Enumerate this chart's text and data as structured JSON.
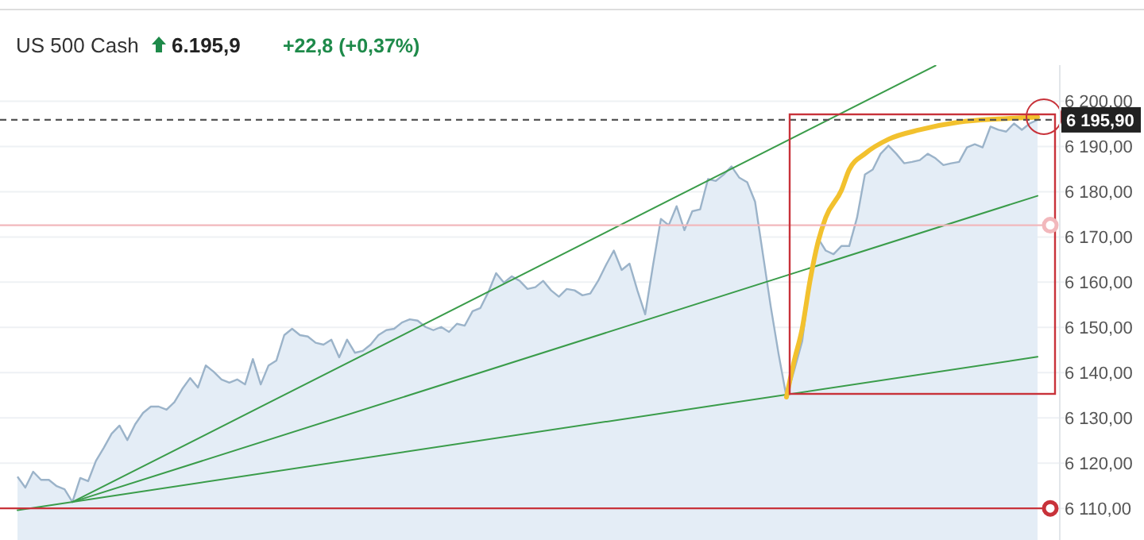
{
  "chart_data": {
    "type": "area",
    "title": "US 500 Cash",
    "subtitle": "6.195,9",
    "annotations": [
      "+22,8 (+0,37%)"
    ],
    "categories": [
      null,
      null,
      null,
      null,
      null,
      null,
      null,
      null,
      null,
      null,
      null,
      null,
      null,
      null,
      null,
      null,
      null,
      null,
      null,
      null,
      null,
      null,
      null,
      null,
      null,
      null,
      null,
      null,
      null,
      null,
      null,
      null,
      null,
      null,
      null,
      null,
      null,
      null,
      null,
      null,
      null,
      null,
      null,
      null,
      null,
      null,
      null,
      null,
      null,
      null,
      null,
      null,
      null,
      null,
      null,
      null,
      null,
      null,
      null,
      null,
      null,
      null,
      null,
      null,
      null,
      null,
      null,
      null,
      null,
      null,
      null,
      null,
      null,
      null,
      null,
      null,
      null,
      null,
      null,
      null,
      null,
      null,
      null,
      null,
      null,
      null,
      null,
      null,
      null,
      null,
      null,
      null,
      null,
      null,
      null,
      null,
      null,
      null,
      null,
      null,
      null,
      null,
      null,
      null,
      null,
      null,
      null,
      null,
      null,
      null,
      null,
      null,
      null,
      null,
      null,
      null,
      null,
      null,
      null,
      null,
      null,
      null,
      null,
      null,
      null,
      null,
      null,
      null,
      null,
      null,
      null
    ],
    "ylim": [
      6103,
      6208
    ],
    "yticks": [
      {
        "value": 6110,
        "label": "6 110,00"
      },
      {
        "value": 6120,
        "label": "6 120,00"
      },
      {
        "value": 6130,
        "label": "6 130,00"
      },
      {
        "value": 6140,
        "label": "6 140,00"
      },
      {
        "value": 6150,
        "label": "6 150,00"
      },
      {
        "value": 6160,
        "label": "6 160,00"
      },
      {
        "value": 6170,
        "label": "6 170,00"
      },
      {
        "value": 6180,
        "label": "6 180,00"
      },
      {
        "value": 6190,
        "label": "6 190,00"
      },
      {
        "value": 6200,
        "label": "6 200,00"
      }
    ],
    "tick_labels": "y",
    "grid": "y",
    "series": [
      {
        "type": "line",
        "color": "#3a9c4a",
        "values": [
          null,
          null,
          null,
          null,
          null,
          null,
          null,
          6111.4,
          null,
          null,
          null,
          null,
          null,
          null,
          null,
          null,
          null,
          null,
          null,
          null,
          null,
          null,
          null,
          null,
          null,
          null,
          null,
          null,
          null,
          null,
          null,
          null,
          null,
          null,
          null,
          null,
          null,
          null,
          null,
          null,
          null,
          null,
          null,
          null,
          null,
          null,
          null,
          null,
          null,
          null,
          null,
          null,
          null,
          null,
          null,
          null,
          null,
          null,
          null,
          null,
          null,
          null,
          null,
          null,
          null,
          null,
          null,
          null,
          null,
          null,
          null,
          null,
          null,
          null,
          null,
          null,
          null,
          null,
          null,
          null,
          null,
          null,
          null,
          null,
          null,
          null,
          null,
          null,
          null,
          null,
          null,
          null,
          null,
          null,
          null,
          null,
          null,
          null,
          null,
          null,
          null,
          null,
          null,
          null,
          null,
          null,
          null,
          null,
          null,
          null,
          null,
          null,
          null,
          null,
          null,
          null,
          null,
          6207.9,
          null,
          null,
          null,
          null,
          null,
          null,
          null,
          null,
          null,
          null,
          null,
          null,
          null
        ]
      },
      {
        "type": "line",
        "color": "#3a9c4a",
        "values": [
          null,
          null,
          null,
          null,
          null,
          null,
          null,
          6111.4,
          null,
          null,
          null,
          null,
          null,
          null,
          null,
          null,
          null,
          null,
          null,
          null,
          null,
          null,
          null,
          null,
          null,
          null,
          null,
          null,
          null,
          null,
          null,
          null,
          null,
          null,
          null,
          null,
          null,
          null,
          null,
          null,
          null,
          null,
          null,
          null,
          null,
          null,
          null,
          null,
          null,
          null,
          null,
          null,
          null,
          null,
          null,
          null,
          null,
          null,
          null,
          null,
          null,
          null,
          null,
          null,
          null,
          null,
          null,
          null,
          null,
          null,
          null,
          null,
          null,
          null,
          null,
          null,
          null,
          null,
          null,
          null,
          null,
          null,
          null,
          null,
          null,
          null,
          null,
          null,
          null,
          null,
          null,
          null,
          null,
          null,
          null,
          null,
          null,
          null,
          null,
          null,
          null,
          null,
          null,
          null,
          null,
          null,
          null,
          null,
          null,
          null,
          null,
          null,
          null,
          null,
          null,
          null,
          null,
          null,
          null,
          null,
          null,
          null,
          null,
          null,
          null,
          null,
          null,
          null,
          null,
          null,
          6179.1
        ]
      },
      {
        "type": "line",
        "color": "#3a9c4a",
        "values": [
          6109.6,
          null,
          null,
          null,
          null,
          null,
          null,
          null,
          null,
          null,
          null,
          null,
          null,
          null,
          null,
          null,
          null,
          null,
          null,
          null,
          null,
          null,
          null,
          null,
          null,
          null,
          null,
          null,
          null,
          null,
          null,
          null,
          null,
          null,
          null,
          null,
          null,
          null,
          null,
          null,
          null,
          null,
          null,
          null,
          null,
          null,
          null,
          null,
          null,
          null,
          null,
          null,
          null,
          null,
          null,
          null,
          null,
          null,
          null,
          null,
          null,
          null,
          null,
          null,
          null,
          null,
          null,
          null,
          null,
          null,
          null,
          null,
          null,
          null,
          null,
          null,
          null,
          null,
          null,
          null,
          null,
          null,
          null,
          null,
          null,
          null,
          null,
          null,
          null,
          null,
          null,
          null,
          null,
          null,
          null,
          null,
          null,
          null,
          null,
          null,
          null,
          null,
          null,
          null,
          null,
          null,
          null,
          null,
          null,
          null,
          null,
          null,
          null,
          null,
          null,
          null,
          null,
          null,
          null,
          null,
          null,
          null,
          null,
          null,
          null,
          null,
          null,
          null,
          null,
          null,
          6143.5
        ]
      },
      {
        "type": "line",
        "color": "#f2c12e",
        "values": [
          null,
          null,
          null,
          null,
          null,
          null,
          null,
          null,
          null,
          null,
          null,
          null,
          null,
          null,
          null,
          null,
          null,
          null,
          null,
          null,
          null,
          null,
          null,
          null,
          null,
          null,
          null,
          null,
          null,
          null,
          null,
          null,
          null,
          null,
          null,
          null,
          null,
          null,
          null,
          null,
          null,
          null,
          null,
          null,
          null,
          null,
          null,
          null,
          null,
          null,
          null,
          null,
          null,
          null,
          null,
          null,
          null,
          null,
          null,
          null,
          null,
          null,
          null,
          null,
          null,
          null,
          null,
          null,
          null,
          null,
          null,
          null,
          null,
          null,
          null,
          null,
          null,
          null,
          null,
          null,
          null,
          null,
          null,
          null,
          null,
          null,
          null,
          null,
          null,
          null,
          null,
          null,
          null,
          null,
          null,
          null,
          null,
          null,
          6134.6,
          6142.7,
          6149.7,
          6160.3,
          6168.7,
          6174.3,
          null,
          6180.3,
          6184.9,
          null,
          6188.4,
          null,
          null,
          6191.6,
          null,
          null,
          null,
          6193.7,
          null,
          null,
          null,
          null,
          6195.4,
          null,
          null,
          null,
          null,
          6196.1,
          null,
          null,
          null,
          null,
          6196.5
        ]
      },
      {
        "color": "#9bb3c9",
        "values": [
          6117.0,
          6114.6,
          6118.1,
          6116.3,
          6116.3,
          6114.9,
          6114.2,
          6111.4,
          6116.7,
          6116.0,
          6120.5,
          6123.4,
          6126.5,
          6128.3,
          6125.1,
          6128.6,
          6131.1,
          6132.5,
          6132.5,
          6131.8,
          6133.5,
          6136.4,
          6138.8,
          6136.7,
          6141.6,
          6140.2,
          6138.5,
          6137.8,
          6138.5,
          6137.4,
          6143.0,
          6137.4,
          6141.6,
          6142.7,
          6148.3,
          6149.7,
          6148.3,
          6148.0,
          6146.6,
          6146.2,
          6147.3,
          6143.4,
          6147.3,
          6144.4,
          6144.8,
          6146.2,
          6148.3,
          6149.4,
          6149.7,
          6151.1,
          6151.8,
          6151.5,
          6150.1,
          6149.4,
          6150.1,
          6149.0,
          6150.8,
          6150.4,
          6153.6,
          6154.3,
          6157.8,
          6162.0,
          6159.9,
          6161.3,
          6160.3,
          6158.5,
          6158.9,
          6160.3,
          6158.2,
          6156.8,
          6158.5,
          6158.2,
          6157.1,
          6157.5,
          6160.3,
          6163.8,
          6167.0,
          6162.7,
          6164.1,
          6158.2,
          6152.9,
          6163.8,
          6174.0,
          6172.6,
          6176.8,
          6171.5,
          6175.7,
          6176.1,
          6182.8,
          6182.4,
          6183.8,
          6185.6,
          6183.1,
          6182.1,
          6177.8,
          6166.2,
          6154.6,
          6144.1,
          6134.6,
          6140.6,
          6146.9,
          6160.3,
          6169.8,
          6167.0,
          6166.2,
          6168.0,
          6168.0,
          6174.3,
          6183.8,
          6184.9,
          6188.4,
          6190.2,
          6188.4,
          6186.3,
          6186.6,
          6187.0,
          6188.4,
          6187.4,
          6185.9,
          6186.3,
          6186.6,
          6189.8,
          6190.5,
          6189.8,
          6194.4,
          6193.7,
          6193.3,
          6195.1,
          6193.7,
          6195.1,
          6195.9
        ]
      }
    ],
    "ref_lines": [
      {
        "axis": "y",
        "value": 6195.9,
        "label": "6 195,90",
        "color": "#555555",
        "line_style": "dashed"
      },
      {
        "axis": "y",
        "value": 6172.6,
        "color": "#f2b8bc",
        "line_style": "solid"
      },
      {
        "axis": "y",
        "value": 6110,
        "color": "#c8323a",
        "line_style": "solid"
      }
    ]
  }
}
